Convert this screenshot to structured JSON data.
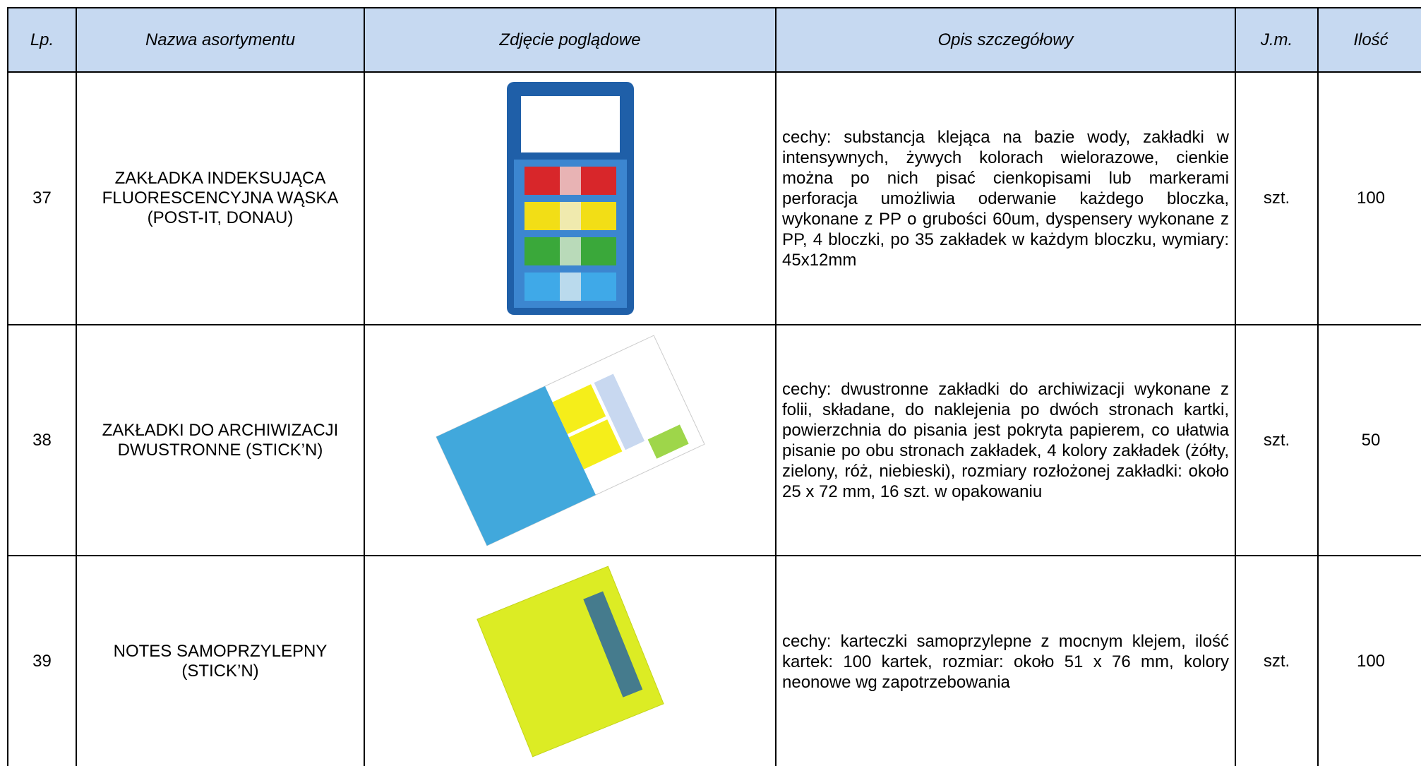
{
  "table": {
    "headers": [
      "Lp.",
      "Nazwa asortymentu",
      "Zdjęcie poglądowe",
      "Opis szczegółowy",
      "J.m.",
      "Ilość"
    ],
    "rows": [
      {
        "lp": "37",
        "name": "ZAKŁADKA INDEKSUJĄCA FLUORESCENCYJNA WĄSKA (POST-IT, DONAU)",
        "description": "cechy: substancja klejąca na bazie wody, zakładki w intensywnych, żywych kolorach wielorazowe, cienkie można po nich pisać cienkopisami lub markerami perforacja umożliwia oderwanie każdego bloczka, wykonane z PP o grubości 60um, dyspensery wykonane z PP, 4 bloczki, po 35 zakładek w każdym bloczku, wymiary: 45x12mm",
        "unit": "szt.",
        "quantity": "100"
      },
      {
        "lp": "38",
        "name": "ZAKŁADKI DO ARCHIWIZACJI DWUSTRONNE (STICK’N)",
        "description": "cechy: dwustronne zakładki do archiwizacji wykonane z folii, składane, do naklejenia po dwóch stronach kartki, powierzchnia do pisania jest pokryta papierem, co ułatwia pisanie po obu stronach zakładek, 4 kolory zakładek (żółty, zielony, róż, niebieski), rozmiary rozłożonej zakładki: około 25 x 72 mm, 16 szt. w opakowaniu",
        "unit": "szt.",
        "quantity": "50"
      },
      {
        "lp": "39",
        "name": "NOTES SAMOPRZYLEPNY (STICK’N)",
        "description": "cechy: karteczki samoprzylepne z mocnym klejem, ilość kartek: 100 kartek, rozmiar: około 51 x 76 mm, kolory neonowe wg zapotrzebowania",
        "unit": "szt.",
        "quantity": "100"
      }
    ]
  }
}
